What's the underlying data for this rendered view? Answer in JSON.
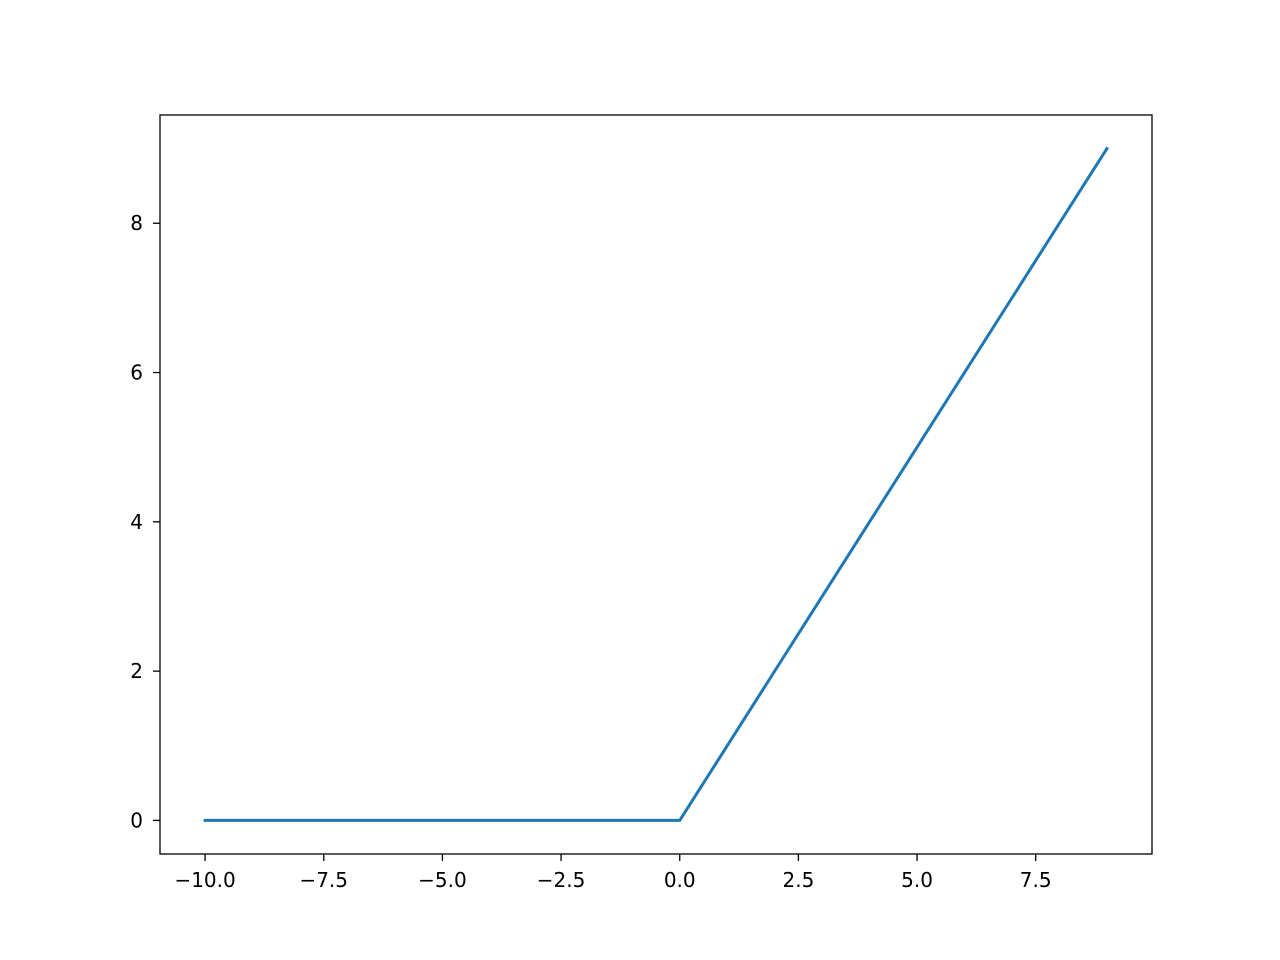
{
  "chart_data": {
    "type": "line",
    "title": "",
    "xlabel": "",
    "ylabel": "",
    "xlim": [
      -10.95,
      9.95
    ],
    "ylim": [
      -0.45,
      9.45
    ],
    "grid": false,
    "x_ticks": [
      -10,
      -7.5,
      -5,
      -2.5,
      0,
      2.5,
      5,
      7.5
    ],
    "x_tick_labels": [
      "−10.0",
      "−7.5",
      "−5.0",
      "−2.5",
      "0.0",
      "2.5",
      "5.0",
      "7.5"
    ],
    "y_ticks": [
      0,
      2,
      4,
      6,
      8
    ],
    "y_tick_labels": [
      "0",
      "2",
      "4",
      "6",
      "8"
    ],
    "series": [
      {
        "color": "#1f77b4",
        "x": [
          -10,
          -9,
          -8,
          -7,
          -6,
          -5,
          -4,
          -3,
          -2,
          -1,
          0,
          1,
          2,
          3,
          4,
          5,
          6,
          7,
          8,
          9
        ],
        "y": [
          0,
          0,
          0,
          0,
          0,
          0,
          0,
          0,
          0,
          0,
          0,
          1,
          2,
          3,
          4,
          5,
          6,
          7,
          8,
          9
        ]
      }
    ]
  }
}
